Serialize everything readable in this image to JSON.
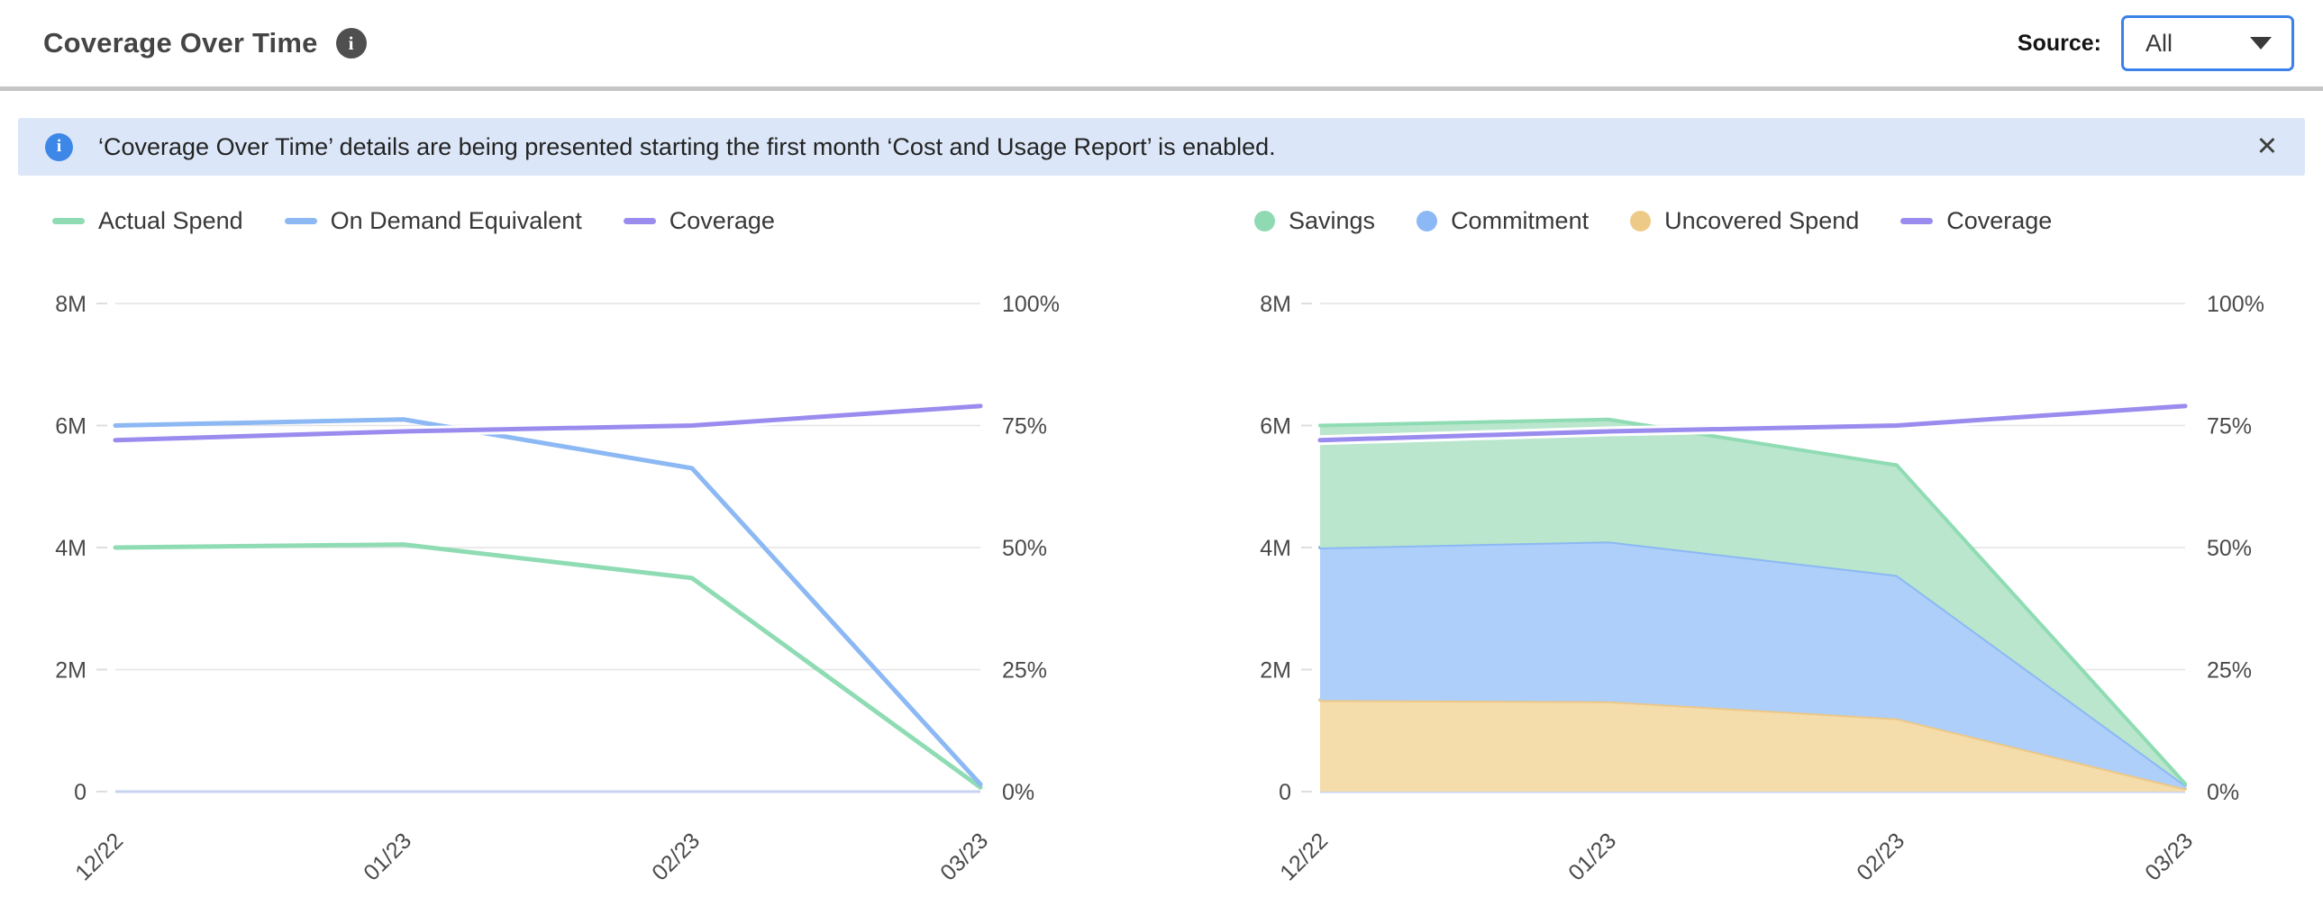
{
  "header": {
    "title": "Coverage Over Time",
    "info_glyph": "i",
    "source_label": "Source:",
    "source_value": "All"
  },
  "banner": {
    "info_glyph": "i",
    "text": "‘Coverage Over Time’ details are being presented starting the first month ‘Cost and Usage Report’ is enabled.",
    "close_glyph": "✕"
  },
  "colors": {
    "accent_blue": "#3b82e8",
    "banner_bg": "#dbe7f8",
    "banner_icon_blue": "#3d87e8",
    "grid_line": "#e4e4e4",
    "baseline": "#c8d3ef",
    "axis_text": "#4a4a4a",
    "green_line": "#8fdcb4",
    "blue_line": "#8cb8f4",
    "purple_line": "#9a8cee",
    "orange_fill": "#f5dcab"
  },
  "chart_data": [
    {
      "type": "line",
      "x": [
        "12/22",
        "01/23",
        "02/23",
        "03/23"
      ],
      "grid": true,
      "legend_position": "top-left",
      "y_left_axis": {
        "ticks": [
          "8M",
          "6M",
          "4M",
          "2M",
          "0"
        ],
        "range": [
          0,
          8
        ],
        "unit": "M"
      },
      "y_right_axis": {
        "ticks": [
          "100%",
          "75%",
          "50%",
          "25%",
          "0%"
        ],
        "range": [
          0,
          100
        ],
        "unit": "%"
      },
      "series": [
        {
          "name": "Actual Spend",
          "type": "line",
          "axis": "left",
          "color": "#8fdcb4",
          "values": [
            4.0,
            4.05,
            3.5,
            0.07
          ]
        },
        {
          "name": "On Demand Equivalent",
          "type": "line",
          "axis": "left",
          "color": "#8cb8f4",
          "values": [
            6.0,
            6.1,
            5.3,
            0.12
          ]
        },
        {
          "name": "Coverage",
          "type": "line",
          "axis": "right",
          "color": "#9a8cee",
          "white_halo": true,
          "values": [
            72,
            73.8,
            75,
            79
          ]
        }
      ],
      "legend": [
        {
          "label": "Actual Spend",
          "marker": "line",
          "color": "#8fdcb4"
        },
        {
          "label": "On Demand Equivalent",
          "marker": "line",
          "color": "#8cb8f4"
        },
        {
          "label": "Coverage",
          "marker": "line",
          "color": "#9a8cee"
        }
      ]
    },
    {
      "type": "area",
      "x": [
        "12/22",
        "01/23",
        "02/23",
        "03/23"
      ],
      "grid": true,
      "legend_position": "top-left",
      "stack_order_bottom_to_top": [
        "Uncovered Spend",
        "Commitment",
        "Savings"
      ],
      "y_left_axis": {
        "ticks": [
          "8M",
          "6M",
          "4M",
          "2M",
          "0"
        ],
        "range": [
          0,
          8
        ],
        "unit": "M"
      },
      "y_right_axis": {
        "ticks": [
          "100%",
          "75%",
          "50%",
          "25%",
          "0%"
        ],
        "range": [
          0,
          100
        ],
        "unit": "%"
      },
      "series": [
        {
          "name": "Uncovered Spend",
          "type": "area",
          "color_fill": "#f5dcab",
          "color_edge": "#edc887",
          "values": [
            1.5,
            1.48,
            1.2,
            0.05
          ]
        },
        {
          "name": "Commitment",
          "type": "area",
          "color_fill": "#adcff9",
          "color_edge": "#8cb8f4",
          "values": [
            2.5,
            2.62,
            2.35,
            0.06
          ]
        },
        {
          "name": "Savings",
          "type": "area",
          "color_fill": "#b9e6cc",
          "color_edge": "#8fdcb4",
          "values": [
            2.0,
            2.0,
            1.8,
            0.02
          ]
        },
        {
          "name": "Coverage",
          "type": "line",
          "axis": "right",
          "color": "#9a8cee",
          "white_halo": true,
          "values": [
            72,
            73.8,
            75,
            79
          ]
        }
      ],
      "legend": [
        {
          "label": "Savings",
          "marker": "circle",
          "color": "#8fd9b3"
        },
        {
          "label": "Commitment",
          "marker": "circle",
          "color": "#8cb9f6"
        },
        {
          "label": "Uncovered Spend",
          "marker": "circle",
          "color": "#eeca88"
        },
        {
          "label": "Coverage",
          "marker": "line",
          "color": "#9a8cee"
        }
      ]
    }
  ]
}
